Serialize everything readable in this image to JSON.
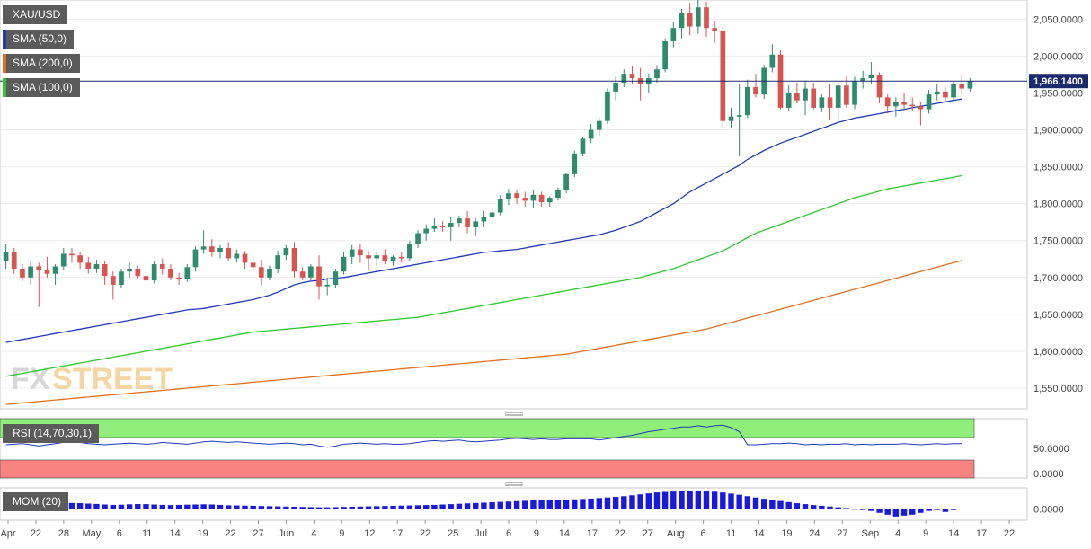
{
  "chart_data": {
    "type": "candlestick",
    "symbol": "XAU/USD",
    "last_price_label": "1,966.1400",
    "last_price": 1966.14,
    "price_axis": {
      "ticks": [
        {
          "value": 2050,
          "label": "2,050.0000"
        },
        {
          "value": 2000,
          "label": "2,000.0000"
        },
        {
          "value": 1950,
          "label": "1,950.0000"
        },
        {
          "value": 1900,
          "label": "1,900.0000"
        },
        {
          "value": 1850,
          "label": "1,850.0000"
        },
        {
          "value": 1800,
          "label": "1,800.0000"
        },
        {
          "value": 1750,
          "label": "1,750.0000"
        },
        {
          "value": 1700,
          "label": "1,700.0000"
        },
        {
          "value": 1650,
          "label": "1,650.0000"
        },
        {
          "value": 1600,
          "label": "1,600.0000"
        },
        {
          "value": 1550,
          "label": "1,550.0000"
        }
      ],
      "range": [
        1522,
        2076
      ]
    },
    "x_axis": {
      "labels": [
        "Apr",
        "22",
        "28",
        "May",
        "6",
        "11",
        "14",
        "19",
        "22",
        "27",
        "Jun",
        "4",
        "9",
        "12",
        "17",
        "22",
        "25",
        "Jul",
        "6",
        "9",
        "14",
        "17",
        "22",
        "27",
        "Aug",
        "6",
        "11",
        "14",
        "19",
        "24",
        "27",
        "Sep",
        "4",
        "9",
        "14",
        "17",
        "22"
      ]
    },
    "legend": [
      {
        "label": "XAU/USD",
        "color": "#5b5b5b"
      },
      {
        "label": "SMA (50,0)",
        "color": "#1f3cb8"
      },
      {
        "label": "SMA (200,0)",
        "color": "#e07020"
      },
      {
        "label": "SMA (100,0)",
        "color": "#2ec82e"
      }
    ],
    "colors": {
      "up": "#2e8b6e",
      "down": "#d9534f",
      "sma50": "#1f3cb8",
      "sma100": "#2ec82e",
      "sma200": "#e07020",
      "rsi_line": "#1f3cb8",
      "mom_bar": "#1a1adc"
    },
    "candles": [
      [
        1722,
        1745,
        1712,
        1735
      ],
      [
        1735,
        1740,
        1705,
        1712
      ],
      [
        1712,
        1718,
        1695,
        1700
      ],
      [
        1700,
        1722,
        1690,
        1715
      ],
      [
        1715,
        1720,
        1660,
        1710
      ],
      [
        1710,
        1728,
        1700,
        1705
      ],
      [
        1705,
        1718,
        1690,
        1715
      ],
      [
        1715,
        1740,
        1710,
        1732
      ],
      [
        1732,
        1740,
        1720,
        1730
      ],
      [
        1730,
        1735,
        1712,
        1720
      ],
      [
        1720,
        1728,
        1705,
        1712
      ],
      [
        1712,
        1724,
        1706,
        1718
      ],
      [
        1718,
        1722,
        1690,
        1702
      ],
      [
        1702,
        1708,
        1670,
        1690
      ],
      [
        1690,
        1712,
        1686,
        1708
      ],
      [
        1708,
        1720,
        1700,
        1712
      ],
      [
        1712,
        1716,
        1698,
        1702
      ],
      [
        1702,
        1710,
        1690,
        1696
      ],
      [
        1696,
        1722,
        1692,
        1718
      ],
      [
        1718,
        1726,
        1704,
        1712
      ],
      [
        1712,
        1718,
        1696,
        1700
      ],
      [
        1700,
        1706,
        1690,
        1698
      ],
      [
        1698,
        1718,
        1694,
        1714
      ],
      [
        1714,
        1742,
        1708,
        1738
      ],
      [
        1738,
        1764,
        1732,
        1742
      ],
      [
        1742,
        1752,
        1728,
        1734
      ],
      [
        1734,
        1744,
        1726,
        1740
      ],
      [
        1740,
        1748,
        1722,
        1726
      ],
      [
        1726,
        1738,
        1720,
        1732
      ],
      [
        1732,
        1736,
        1712,
        1720
      ],
      [
        1720,
        1728,
        1708,
        1714
      ],
      [
        1714,
        1724,
        1690,
        1700
      ],
      [
        1700,
        1716,
        1696,
        1712
      ],
      [
        1712,
        1736,
        1706,
        1730
      ],
      [
        1730,
        1744,
        1724,
        1740
      ],
      [
        1740,
        1748,
        1700,
        1708
      ],
      [
        1708,
        1714,
        1696,
        1700
      ],
      [
        1700,
        1718,
        1696,
        1715
      ],
      [
        1715,
        1730,
        1670,
        1688
      ],
      [
        1688,
        1700,
        1676,
        1690
      ],
      [
        1690,
        1712,
        1686,
        1708
      ],
      [
        1708,
        1734,
        1704,
        1728
      ],
      [
        1728,
        1744,
        1718,
        1738
      ],
      [
        1738,
        1746,
        1720,
        1730
      ],
      [
        1730,
        1736,
        1710,
        1726
      ],
      [
        1726,
        1734,
        1716,
        1730
      ],
      [
        1730,
        1738,
        1718,
        1722
      ],
      [
        1722,
        1730,
        1716,
        1728
      ],
      [
        1728,
        1734,
        1720,
        1726
      ],
      [
        1726,
        1750,
        1722,
        1746
      ],
      [
        1746,
        1764,
        1740,
        1760
      ],
      [
        1760,
        1772,
        1750,
        1766
      ],
      [
        1766,
        1780,
        1762,
        1770
      ],
      [
        1770,
        1776,
        1762,
        1768
      ],
      [
        1768,
        1782,
        1750,
        1774
      ],
      [
        1774,
        1784,
        1768,
        1780
      ],
      [
        1780,
        1790,
        1760,
        1768
      ],
      [
        1768,
        1780,
        1756,
        1776
      ],
      [
        1776,
        1790,
        1768,
        1782
      ],
      [
        1782,
        1794,
        1772,
        1788
      ],
      [
        1788,
        1812,
        1784,
        1806
      ],
      [
        1806,
        1820,
        1798,
        1814
      ],
      [
        1814,
        1818,
        1800,
        1808
      ],
      [
        1808,
        1816,
        1796,
        1804
      ],
      [
        1804,
        1818,
        1794,
        1812
      ],
      [
        1812,
        1816,
        1796,
        1802
      ],
      [
        1802,
        1810,
        1796,
        1808
      ],
      [
        1808,
        1822,
        1804,
        1818
      ],
      [
        1818,
        1842,
        1814,
        1840
      ],
      [
        1840,
        1872,
        1836,
        1868
      ],
      [
        1868,
        1890,
        1864,
        1888
      ],
      [
        1888,
        1908,
        1882,
        1900
      ],
      [
        1900,
        1916,
        1892,
        1912
      ],
      [
        1912,
        1956,
        1908,
        1952
      ],
      [
        1952,
        1972,
        1940,
        1964
      ],
      [
        1964,
        1982,
        1958,
        1976
      ],
      [
        1976,
        1986,
        1962,
        1970
      ],
      [
        1970,
        1984,
        1940,
        1962
      ],
      [
        1962,
        1976,
        1950,
        1970
      ],
      [
        1970,
        1988,
        1964,
        1982
      ],
      [
        1982,
        2024,
        1978,
        2020
      ],
      [
        2020,
        2046,
        2012,
        2038
      ],
      [
        2038,
        2064,
        2024,
        2058
      ],
      [
        2058,
        2072,
        2028,
        2040
      ],
      [
        2040,
        2076,
        2030,
        2066
      ],
      [
        2066,
        2074,
        2026,
        2038
      ],
      [
        2038,
        2048,
        2018,
        2034
      ],
      [
        2034,
        2040,
        1902,
        1912
      ],
      [
        1912,
        1930,
        1902,
        1918
      ],
      [
        1918,
        1962,
        1864,
        1920
      ],
      [
        1920,
        1968,
        1916,
        1958
      ],
      [
        1958,
        1976,
        1944,
        1948
      ],
      [
        1948,
        1988,
        1942,
        1984
      ],
      [
        1984,
        2016,
        1978,
        2002
      ],
      [
        2002,
        2008,
        1928,
        1930
      ],
      [
        1930,
        1960,
        1926,
        1950
      ],
      [
        1950,
        1964,
        1936,
        1940
      ],
      [
        1940,
        1966,
        1920,
        1956
      ],
      [
        1956,
        1964,
        1928,
        1930
      ],
      [
        1930,
        1948,
        1924,
        1944
      ],
      [
        1944,
        1962,
        1914,
        1930
      ],
      [
        1930,
        1964,
        1910,
        1960
      ],
      [
        1960,
        1972,
        1930,
        1934
      ],
      [
        1934,
        1972,
        1928,
        1966
      ],
      [
        1966,
        1980,
        1956,
        1970
      ],
      [
        1970,
        1992,
        1962,
        1974
      ],
      [
        1974,
        1978,
        1936,
        1944
      ],
      [
        1944,
        1948,
        1922,
        1932
      ],
      [
        1932,
        1944,
        1918,
        1938
      ],
      [
        1938,
        1950,
        1926,
        1934
      ],
      [
        1934,
        1944,
        1926,
        1932
      ],
      [
        1932,
        1938,
        1906,
        1928
      ],
      [
        1928,
        1954,
        1922,
        1948
      ],
      [
        1948,
        1962,
        1940,
        1952
      ],
      [
        1952,
        1958,
        1938,
        1944
      ],
      [
        1944,
        1966,
        1940,
        1962
      ],
      [
        1962,
        1974,
        1948,
        1956
      ],
      [
        1956,
        1970,
        1952,
        1966
      ]
    ],
    "sma50": [
      1612,
      1614,
      1616,
      1618,
      1620,
      1622,
      1624,
      1626,
      1628,
      1630,
      1632,
      1634,
      1636,
      1638,
      1640,
      1642,
      1644,
      1646,
      1648,
      1650,
      1652,
      1654,
      1656,
      1657,
      1658,
      1660,
      1662,
      1664,
      1666,
      1668,
      1670,
      1673,
      1676,
      1680,
      1685,
      1690,
      1693,
      1695,
      1696,
      1698,
      1699,
      1700,
      1702,
      1704,
      1706,
      1708,
      1710,
      1712,
      1714,
      1716,
      1718,
      1720,
      1722,
      1724,
      1726,
      1728,
      1730,
      1732,
      1734,
      1735,
      1736,
      1737,
      1738,
      1740,
      1742,
      1744,
      1746,
      1748,
      1750,
      1752,
      1754,
      1756,
      1758,
      1761,
      1764,
      1768,
      1772,
      1776,
      1782,
      1788,
      1794,
      1800,
      1808,
      1816,
      1822,
      1828,
      1834,
      1840,
      1846,
      1852,
      1860,
      1866,
      1872,
      1877,
      1882,
      1886,
      1890,
      1894,
      1898,
      1902,
      1906,
      1910,
      1913,
      1916,
      1918,
      1920,
      1922,
      1924,
      1926,
      1928,
      1930,
      1932,
      1934,
      1936,
      1938,
      1940,
      1942
    ],
    "sma100": [
      1566,
      1568,
      1570,
      1572,
      1574,
      1576,
      1578,
      1580,
      1582,
      1584,
      1586,
      1588,
      1590,
      1592,
      1594,
      1596,
      1598,
      1600,
      1602,
      1604,
      1606,
      1608,
      1610,
      1612,
      1614,
      1616,
      1618,
      1620,
      1622,
      1624,
      1626,
      1627,
      1628,
      1629,
      1630,
      1631,
      1632,
      1633,
      1634,
      1635,
      1636,
      1637,
      1638,
      1639,
      1640,
      1641,
      1642,
      1643,
      1644,
      1645,
      1646,
      1648,
      1650,
      1652,
      1654,
      1656,
      1658,
      1660,
      1662,
      1664,
      1666,
      1668,
      1670,
      1672,
      1674,
      1676,
      1678,
      1680,
      1682,
      1684,
      1686,
      1688,
      1690,
      1692,
      1694,
      1696,
      1698,
      1700,
      1703,
      1706,
      1709,
      1712,
      1716,
      1720,
      1724,
      1728,
      1732,
      1736,
      1742,
      1748,
      1754,
      1760,
      1764,
      1768,
      1772,
      1776,
      1780,
      1784,
      1788,
      1792,
      1796,
      1800,
      1804,
      1808,
      1811,
      1814,
      1817,
      1820,
      1822,
      1824,
      1826,
      1828,
      1830,
      1832,
      1834,
      1836,
      1838
    ],
    "sma200": [
      1528,
      1529,
      1530,
      1531,
      1532,
      1533,
      1534,
      1535,
      1536,
      1537,
      1538,
      1539,
      1540,
      1541,
      1542,
      1543,
      1544,
      1545,
      1546,
      1547,
      1548,
      1549,
      1550,
      1551,
      1552,
      1553,
      1554,
      1555,
      1556,
      1557,
      1558,
      1559,
      1560,
      1561,
      1562,
      1563,
      1564,
      1565,
      1566,
      1567,
      1568,
      1569,
      1570,
      1571,
      1572,
      1573,
      1574,
      1575,
      1576,
      1577,
      1578,
      1579,
      1580,
      1581,
      1582,
      1583,
      1584,
      1585,
      1586,
      1587,
      1588,
      1589,
      1590,
      1591,
      1592,
      1593,
      1594,
      1595,
      1596,
      1598,
      1600,
      1602,
      1604,
      1606,
      1608,
      1610,
      1612,
      1614,
      1616,
      1618,
      1620,
      1622,
      1624,
      1626,
      1628,
      1630,
      1633,
      1636,
      1639,
      1642,
      1645,
      1648,
      1651,
      1654,
      1657,
      1660,
      1663,
      1666,
      1669,
      1672,
      1675,
      1678,
      1681,
      1684,
      1687,
      1690,
      1693,
      1696,
      1699,
      1702,
      1705,
      1708,
      1711,
      1714,
      1717,
      1720,
      1723
    ],
    "rsi": {
      "label": "RSI (14,70,30,1)",
      "levels": {
        "upper": 70,
        "lower": 30
      },
      "ticks": [
        {
          "value": 50,
          "label": "50.0000"
        },
        {
          "value": 0,
          "label": "0.0000"
        }
      ],
      "range": [
        0,
        100
      ],
      "values": [
        56,
        57,
        58,
        56,
        54,
        56,
        58,
        60,
        61,
        60,
        58,
        57,
        56,
        57,
        58,
        59,
        58,
        57,
        58,
        60,
        59,
        58,
        57,
        59,
        61,
        62,
        61,
        60,
        61,
        60,
        59,
        58,
        57,
        58,
        59,
        58,
        56,
        57,
        54,
        52,
        54,
        57,
        58,
        59,
        58,
        57,
        58,
        57,
        57,
        58,
        60,
        62,
        63,
        62,
        63,
        64,
        62,
        61,
        62,
        63,
        64,
        66,
        67,
        66,
        65,
        66,
        65,
        65,
        66,
        66,
        66,
        66,
        64,
        66,
        68,
        70,
        72,
        75,
        78,
        80,
        82,
        84,
        86,
        86,
        88,
        86,
        88,
        89,
        85,
        78,
        56,
        56,
        57,
        58,
        58,
        59,
        58,
        56,
        57,
        56,
        57,
        57,
        58,
        56,
        57,
        56,
        57,
        57,
        57,
        58,
        57,
        56,
        57,
        58,
        57,
        58,
        58
      ]
    },
    "mom": {
      "label": "MOM (20)",
      "ticks": [
        {
          "value": 0,
          "label": "0.0000"
        }
      ],
      "range": [
        -120,
        230
      ],
      "values": [
        70,
        65,
        60,
        55,
        52,
        50,
        58,
        62,
        66,
        64,
        60,
        56,
        50,
        46,
        48,
        52,
        55,
        54,
        50,
        46,
        44,
        46,
        48,
        50,
        52,
        50,
        46,
        42,
        40,
        38,
        36,
        34,
        32,
        30,
        28,
        26,
        24,
        22,
        20,
        20,
        22,
        24,
        26,
        28,
        30,
        32,
        34,
        36,
        38,
        40,
        42,
        44,
        46,
        50,
        54,
        58,
        62,
        66,
        70,
        74,
        78,
        82,
        86,
        90,
        94,
        98,
        100,
        102,
        104,
        106,
        110,
        114,
        120,
        126,
        132,
        140,
        150,
        160,
        170,
        180,
        186,
        190,
        194,
        196,
        200,
        196,
        188,
        180,
        168,
        156,
        140,
        126,
        112,
        100,
        88,
        76,
        64,
        54,
        44,
        36,
        28,
        20,
        12,
        4,
        -8,
        -20,
        -40,
        -60,
        -80,
        -70,
        -60,
        -40,
        -20,
        -10,
        -30,
        -10
      ]
    }
  }
}
